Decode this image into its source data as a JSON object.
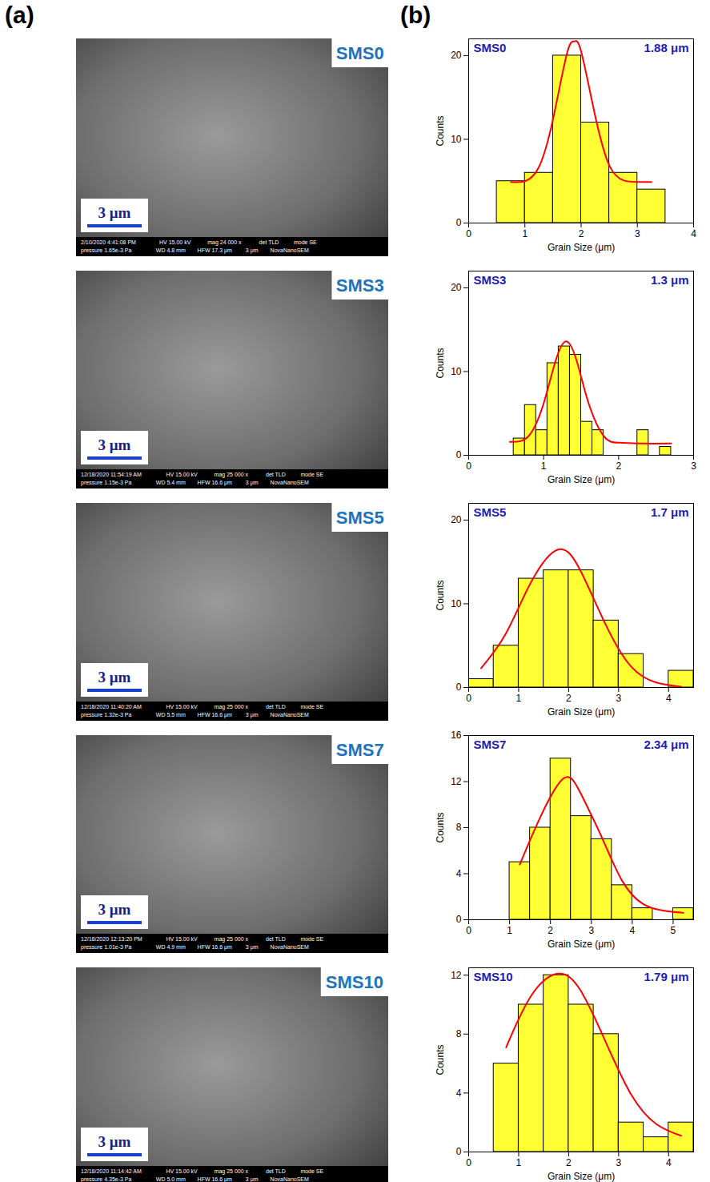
{
  "panel_labels": [
    "(a)",
    "(b)"
  ],
  "images": [
    {
      "label": "SMS0",
      "scale_bar": "3 μm",
      "footer": [
        [
          "2/10/2020 4:41:08 PM",
          "HV 15.00 kV",
          "mag 24 000 x",
          "det TLD",
          "mode SE"
        ],
        [
          "pressure 1.65e-3 Pa",
          "WD 4.8 mm",
          "HFW 17.3 μm",
          "3 μm",
          "NovaNanoSEM"
        ]
      ]
    },
    {
      "label": "SMS3",
      "scale_bar": "3 μm",
      "footer": [
        [
          "12/18/2020 11:54:19 AM",
          "HV 15.00 kV",
          "mag 25 000 x",
          "det TLD",
          "mode SE"
        ],
        [
          "pressure 1.15e-3 Pa",
          "WD 5.4 mm",
          "HFW 16.6 μm",
          "3 μm",
          "NovaNanoSEM"
        ]
      ]
    },
    {
      "label": "SMS5",
      "scale_bar": "3 μm",
      "footer": [
        [
          "12/18/2020 11:40:20 AM",
          "HV 15.00 kV",
          "mag 25 000 x",
          "det TLD",
          "mode SE"
        ],
        [
          "pressure 1.32e-3 Pa",
          "WD 5.5 mm",
          "HFW 16.6 μm",
          "3 μm",
          "NovaNanoSEM"
        ]
      ]
    },
    {
      "label": "SMS7",
      "scale_bar": "3 μm",
      "footer": [
        [
          "12/18/2020 12:13:20 PM",
          "HV 15.00 kV",
          "mag 25 000 x",
          "det TLD",
          "mode SE"
        ],
        [
          "pressure 1.01e-3 Pa",
          "WD 4.9 mm",
          "HFW 16.6 μm",
          "3 μm",
          "NovaNanoSEM"
        ]
      ]
    },
    {
      "label": "SMS10",
      "scale_bar": "3 μm",
      "footer": [
        [
          "12/18/2020 11:14:42 AM",
          "HV 15.00 kV",
          "mag 25 000 x",
          "det TLD",
          "mode SE"
        ],
        [
          "pressure 4.35e-3 Pa",
          "WD 5.0 mm",
          "HFW 16.6 μm",
          "3 μm",
          "NovaNanoSEM"
        ]
      ]
    }
  ],
  "chart_data": [
    {
      "type": "histogram",
      "title": "SMS0",
      "annotation": "1.88 μm",
      "x_label": "Grain Size (μm)",
      "y_label": "Counts",
      "bins": [
        0.5,
        1.0,
        1.5,
        2.0,
        2.5,
        3.0,
        3.5
      ],
      "counts": [
        5,
        6,
        20,
        12,
        6,
        4
      ],
      "color": "#ffff33",
      "fit": {
        "x": [
          0.75,
          1.0,
          1.25,
          1.5,
          1.75,
          1.88,
          2.0,
          2.25,
          2.5,
          2.75,
          3.0,
          3.25
        ],
        "values": [
          4.9,
          5.0,
          6.7,
          12.4,
          20.3,
          21.7,
          20.5,
          12.8,
          6.9,
          5.1,
          4.9,
          4.9
        ],
        "color": "#ff0000"
      },
      "xlim": [
        0,
        4
      ],
      "xticks": [
        0,
        1,
        2,
        3,
        4
      ],
      "ylim": [
        0,
        22
      ],
      "yticks": [
        0,
        10,
        20
      ]
    },
    {
      "type": "histogram",
      "title": "SMS3",
      "annotation": "1.3 μm",
      "x_label": "Grain Size (μm)",
      "y_label": "Counts",
      "bins": [
        0.6,
        0.75,
        0.9,
        1.05,
        1.2,
        1.35,
        1.5,
        1.65,
        1.8,
        1.95,
        2.1,
        2.25,
        2.4,
        2.55,
        2.7
      ],
      "counts": [
        2,
        6,
        3,
        11,
        13,
        12,
        4,
        3,
        0,
        0,
        0,
        3,
        0,
        1
      ],
      "color": "#ffff33",
      "fit": {
        "x": [
          0.55,
          0.8,
          1.0,
          1.15,
          1.3,
          1.45,
          1.6,
          1.8,
          2.0,
          2.3,
          2.7
        ],
        "values": [
          1.6,
          2.3,
          6.2,
          11.0,
          13.6,
          11.0,
          6.2,
          2.3,
          1.5,
          1.4,
          1.4
        ],
        "color": "#ff0000"
      },
      "xlim": [
        0,
        3
      ],
      "xticks": [
        0,
        1,
        2,
        3
      ],
      "ylim": [
        0,
        22
      ],
      "yticks": [
        0,
        10,
        20
      ]
    },
    {
      "type": "histogram",
      "title": "SMS5",
      "annotation": "1.7 μm",
      "x_label": "Grain Size (μm)",
      "y_label": "Counts",
      "bins": [
        0,
        0.5,
        1.0,
        1.5,
        2.0,
        2.5,
        3.0,
        3.5,
        4.0,
        4.5
      ],
      "counts": [
        1,
        5,
        13,
        14,
        14,
        8,
        4,
        0,
        2
      ],
      "color": "#ffff33",
      "fit": {
        "x": [
          0.25,
          0.75,
          1.25,
          1.8,
          2.25,
          2.75,
          3.25,
          3.75,
          4.25
        ],
        "values": [
          2.3,
          6.5,
          12.6,
          16.5,
          13.8,
          7.4,
          2.5,
          0.6,
          0.1
        ],
        "color": "#ff0000"
      },
      "xlim": [
        0,
        4.5
      ],
      "xticks": [
        0,
        1,
        2,
        3,
        4
      ],
      "ylim": [
        0,
        22
      ],
      "yticks": [
        0,
        10,
        20
      ]
    },
    {
      "type": "histogram",
      "title": "SMS7",
      "annotation": "2.34 μm",
      "x_label": "Grain Size (μm)",
      "y_label": "Counts",
      "bins": [
        1.0,
        1.5,
        2.0,
        2.5,
        3.0,
        3.5,
        4.0,
        4.5,
        5.0,
        5.5
      ],
      "counts": [
        5,
        8,
        14,
        9,
        7,
        3,
        1,
        0,
        1
      ],
      "color": "#ffff33",
      "fit": {
        "x": [
          1.25,
          1.75,
          2.33,
          2.75,
          3.25,
          3.75,
          4.25,
          4.75,
          5.25
        ],
        "values": [
          4.8,
          8.9,
          12.3,
          10.9,
          7.2,
          3.4,
          1.4,
          0.8,
          0.6
        ],
        "color": "#ff0000"
      },
      "xlim": [
        0,
        5.5
      ],
      "xticks": [
        0,
        1,
        2,
        3,
        4,
        5
      ],
      "ylim": [
        0,
        16
      ],
      "yticks": [
        0,
        4,
        8,
        12,
        16
      ]
    },
    {
      "type": "histogram",
      "title": "SMS10",
      "annotation": "1.79 μm",
      "x_label": "Grain Size (μm)",
      "y_label": "Counts",
      "bins": [
        0.5,
        1.0,
        1.5,
        2.0,
        2.5,
        3.0,
        3.5,
        4.0,
        4.5
      ],
      "counts": [
        6,
        10,
        12,
        10,
        8,
        2,
        1,
        2
      ],
      "color": "#ffff33",
      "fit": {
        "x": [
          0.75,
          1.25,
          1.79,
          2.25,
          2.75,
          3.25,
          3.75,
          4.25
        ],
        "values": [
          7.1,
          10.6,
          12.1,
          10.9,
          7.4,
          3.9,
          1.9,
          1.1
        ],
        "color": "#ff0000"
      },
      "xlim": [
        0,
        4.5
      ],
      "xticks": [
        0,
        1,
        2,
        3,
        4
      ],
      "ylim": [
        0,
        12.5
      ],
      "yticks": [
        0,
        4,
        8,
        12
      ]
    }
  ]
}
